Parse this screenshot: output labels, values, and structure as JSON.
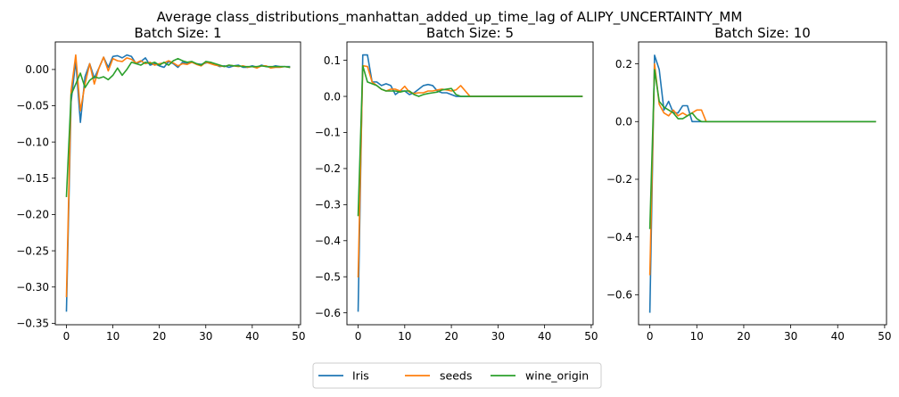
{
  "figure": {
    "title": "Average class_distributions_manhattan_added_up_time_lag of ALIPY_UNCERTAINTY_MM"
  },
  "legend": {
    "placement": "bottom-center",
    "entries": [
      {
        "name": "Iris",
        "color": "#1f77b4"
      },
      {
        "name": "seeds",
        "color": "#ff7f0e"
      },
      {
        "name": "wine_origin",
        "color": "#2ca02c"
      }
    ]
  },
  "chart_data": [
    {
      "type": "line",
      "title": "Batch Size: 1",
      "xlabel": "",
      "ylabel": "",
      "xlim": [
        -2.4,
        50.4
      ],
      "ylim": [
        -0.352,
        0.038
      ],
      "xticks": [
        0,
        10,
        20,
        30,
        40,
        50
      ],
      "yticks": [
        -0.35,
        -0.3,
        -0.25,
        -0.2,
        -0.15,
        -0.1,
        -0.05,
        0.0
      ],
      "ytick_labels": [
        "−0.35",
        "−0.30",
        "−0.25",
        "−0.20",
        "−0.15",
        "−0.10",
        "−0.05",
        "0.00"
      ],
      "grid": false,
      "series": [
        {
          "name": "Iris",
          "color": "#1f77b4",
          "x": [
            0,
            1,
            2,
            3,
            4,
            5,
            6,
            7,
            8,
            9,
            10,
            11,
            12,
            13,
            14,
            15,
            16,
            17,
            18,
            19,
            20,
            21,
            22,
            23,
            24,
            25,
            26,
            27,
            28,
            29,
            30,
            31,
            32,
            33,
            34,
            35,
            36,
            37,
            38,
            39,
            40,
            41,
            42,
            43,
            44,
            45,
            46,
            47,
            48
          ],
          "y": [
            -0.333,
            -0.045,
            0.012,
            -0.073,
            -0.01,
            0.008,
            -0.012,
            0.002,
            0.017,
            0.003,
            0.018,
            0.019,
            0.016,
            0.02,
            0.018,
            0.008,
            0.011,
            0.016,
            0.006,
            0.008,
            0.005,
            0.003,
            0.011,
            0.008,
            0.003,
            0.01,
            0.008,
            0.01,
            0.008,
            0.007,
            0.009,
            0.01,
            0.007,
            0.004,
            0.005,
            0.003,
            0.005,
            0.006,
            0.003,
            0.003,
            0.005,
            0.003,
            0.006,
            0.004,
            0.003,
            0.005,
            0.004,
            0.004,
            0.004
          ]
        },
        {
          "name": "seeds",
          "color": "#ff7f0e",
          "x": [
            0,
            1,
            2,
            3,
            4,
            5,
            6,
            7,
            8,
            9,
            10,
            11,
            12,
            13,
            14,
            15,
            16,
            17,
            18,
            19,
            20,
            21,
            22,
            23,
            24,
            25,
            26,
            27,
            28,
            29,
            30,
            31,
            32,
            33,
            34,
            35,
            36,
            37,
            38,
            39,
            40,
            41,
            42,
            43,
            44,
            45,
            46,
            47,
            48
          ],
          "y": [
            -0.313,
            -0.03,
            0.02,
            -0.057,
            -0.02,
            0.008,
            -0.02,
            0.002,
            0.017,
            -0.002,
            0.015,
            0.012,
            0.011,
            0.016,
            0.014,
            0.009,
            0.012,
            0.008,
            0.01,
            0.006,
            0.008,
            0.009,
            0.012,
            0.009,
            0.005,
            0.008,
            0.007,
            0.01,
            0.007,
            0.005,
            0.01,
            0.008,
            0.006,
            0.005,
            0.004,
            0.006,
            0.005,
            0.004,
            0.005,
            0.003,
            0.004,
            0.002,
            0.005,
            0.005,
            0.002,
            0.003,
            0.003,
            0.004,
            0.003
          ]
        },
        {
          "name": "wine_origin",
          "color": "#2ca02c",
          "x": [
            0,
            1,
            2,
            3,
            4,
            5,
            6,
            7,
            8,
            9,
            10,
            11,
            12,
            13,
            14,
            15,
            16,
            17,
            18,
            19,
            20,
            21,
            22,
            23,
            24,
            25,
            26,
            27,
            28,
            29,
            30,
            31,
            32,
            33,
            34,
            35,
            36,
            37,
            38,
            39,
            40,
            41,
            42,
            43,
            44,
            45,
            46,
            47,
            48
          ],
          "y": [
            -0.175,
            -0.035,
            -0.02,
            -0.005,
            -0.025,
            -0.015,
            -0.01,
            -0.012,
            -0.01,
            -0.014,
            -0.008,
            0.002,
            -0.008,
            0.0,
            0.01,
            0.008,
            0.006,
            0.01,
            0.008,
            0.01,
            0.006,
            0.01,
            0.006,
            0.012,
            0.015,
            0.012,
            0.01,
            0.011,
            0.008,
            0.006,
            0.011,
            0.01,
            0.008,
            0.006,
            0.004,
            0.006,
            0.005,
            0.005,
            0.004,
            0.004,
            0.004,
            0.004,
            0.005,
            0.004,
            0.004,
            0.004,
            0.004,
            0.004,
            0.003
          ]
        }
      ]
    },
    {
      "type": "line",
      "title": "Batch Size: 5",
      "xlabel": "",
      "ylabel": "",
      "xlim": [
        -2.4,
        50.4
      ],
      "ylim": [
        -0.633,
        0.151
      ],
      "xticks": [
        0,
        10,
        20,
        30,
        40,
        50
      ],
      "yticks": [
        -0.6,
        -0.5,
        -0.4,
        -0.3,
        -0.2,
        -0.1,
        0.0,
        0.1
      ],
      "ytick_labels": [
        "−0.6",
        "−0.5",
        "−0.4",
        "−0.3",
        "−0.2",
        "−0.1",
        "0.0",
        "0.1"
      ],
      "grid": false,
      "series": [
        {
          "name": "Iris",
          "color": "#1f77b4",
          "x": [
            0,
            1,
            2,
            3,
            4,
            5,
            6,
            7,
            8,
            9,
            10,
            11,
            12,
            13,
            14,
            15,
            16,
            17,
            18,
            19,
            20,
            21,
            22,
            23,
            24,
            25,
            26,
            27,
            28,
            29,
            30,
            31,
            32,
            33,
            34,
            35,
            36,
            37,
            38,
            39,
            40,
            41,
            42,
            43,
            44,
            45,
            46,
            47,
            48
          ],
          "y": [
            -0.595,
            0.115,
            0.115,
            0.04,
            0.04,
            0.03,
            0.035,
            0.03,
            0.005,
            0.015,
            0.015,
            0.005,
            0.01,
            0.02,
            0.03,
            0.033,
            0.03,
            0.015,
            0.01,
            0.01,
            0.005,
            0,
            0,
            0,
            0,
            0,
            0,
            0,
            0,
            0,
            0,
            0,
            0,
            0,
            0,
            0,
            0,
            0,
            0,
            0,
            0,
            0,
            0,
            0,
            0,
            0,
            0,
            0,
            0
          ]
        },
        {
          "name": "seeds",
          "color": "#ff7f0e",
          "x": [
            0,
            1,
            2,
            3,
            4,
            5,
            6,
            7,
            8,
            9,
            10,
            11,
            12,
            13,
            14,
            15,
            16,
            17,
            18,
            19,
            20,
            21,
            22,
            23,
            24,
            25,
            26,
            27,
            28,
            29,
            30,
            31,
            32,
            33,
            34,
            35,
            36,
            37,
            38,
            39,
            40,
            41,
            42,
            43,
            44,
            45,
            46,
            47,
            48
          ],
          "y": [
            -0.5,
            0.085,
            0.083,
            0.04,
            0.03,
            0.02,
            0.015,
            0.02,
            0.02,
            0.015,
            0.028,
            0.012,
            0.008,
            0.01,
            0.01,
            0.015,
            0.015,
            0.018,
            0.02,
            0.018,
            0.015,
            0.018,
            0.03,
            0.015,
            0,
            0,
            0,
            0,
            0,
            0,
            0,
            0,
            0,
            0,
            0,
            0,
            0,
            0,
            0,
            0,
            0,
            0,
            0,
            0,
            0,
            0,
            0,
            0,
            0
          ]
        },
        {
          "name": "wine_origin",
          "color": "#2ca02c",
          "x": [
            0,
            1,
            2,
            3,
            4,
            5,
            6,
            7,
            8,
            9,
            10,
            11,
            12,
            13,
            14,
            15,
            16,
            17,
            18,
            19,
            20,
            21,
            22,
            23,
            24,
            25,
            26,
            27,
            28,
            29,
            30,
            31,
            32,
            33,
            34,
            35,
            36,
            37,
            38,
            39,
            40,
            41,
            42,
            43,
            44,
            45,
            46,
            47,
            48
          ],
          "y": [
            -0.33,
            0.085,
            0.04,
            0.035,
            0.03,
            0.02,
            0.015,
            0.015,
            0.015,
            0.012,
            0.015,
            0.015,
            0.005,
            0.0,
            0.005,
            0.008,
            0.01,
            0.012,
            0.018,
            0.02,
            0.022,
            0.005,
            0,
            0,
            0,
            0,
            0,
            0,
            0,
            0,
            0,
            0,
            0,
            0,
            0,
            0,
            0,
            0,
            0,
            0,
            0,
            0,
            0,
            0,
            0,
            0,
            0,
            0,
            0
          ]
        }
      ]
    },
    {
      "type": "line",
      "title": "Batch Size: 10",
      "xlabel": "",
      "ylabel": "",
      "xlim": [
        -2.4,
        50.4
      ],
      "ylim": [
        -0.704,
        0.276
      ],
      "xticks": [
        0,
        10,
        20,
        30,
        40,
        50
      ],
      "yticks": [
        -0.6,
        -0.4,
        -0.2,
        0.0,
        0.2
      ],
      "ytick_labels": [
        "−0.6",
        "−0.4",
        "−0.2",
        "0.0",
        "0.2"
      ],
      "grid": false,
      "series": [
        {
          "name": "Iris",
          "color": "#1f77b4",
          "x": [
            0,
            1,
            2,
            3,
            4,
            5,
            6,
            7,
            8,
            9,
            10,
            11,
            12,
            13,
            14,
            15,
            16,
            17,
            18,
            19,
            20,
            21,
            22,
            23,
            24,
            25,
            26,
            27,
            28,
            29,
            30,
            31,
            32,
            33,
            34,
            35,
            36,
            37,
            38,
            39,
            40,
            41,
            42,
            43,
            44,
            45,
            46,
            47,
            48
          ],
          "y": [
            -0.66,
            0.23,
            0.18,
            0.04,
            0.07,
            0.03,
            0.03,
            0.055,
            0.055,
            0.0,
            0.0,
            0.0,
            0,
            0,
            0,
            0,
            0,
            0,
            0,
            0,
            0,
            0,
            0,
            0,
            0,
            0,
            0,
            0,
            0,
            0,
            0,
            0,
            0,
            0,
            0,
            0,
            0,
            0,
            0,
            0,
            0,
            0,
            0,
            0,
            0,
            0,
            0,
            0,
            0
          ]
        },
        {
          "name": "seeds",
          "color": "#ff7f0e",
          "x": [
            0,
            1,
            2,
            3,
            4,
            5,
            6,
            7,
            8,
            9,
            10,
            11,
            12,
            13,
            14,
            15,
            16,
            17,
            18,
            19,
            20,
            21,
            22,
            23,
            24,
            25,
            26,
            27,
            28,
            29,
            30,
            31,
            32,
            33,
            34,
            35,
            36,
            37,
            38,
            39,
            40,
            41,
            42,
            43,
            44,
            45,
            46,
            47,
            48
          ],
          "y": [
            -0.53,
            0.2,
            0.06,
            0.03,
            0.02,
            0.04,
            0.02,
            0.03,
            0.02,
            0.03,
            0.04,
            0.04,
            0,
            0,
            0,
            0,
            0,
            0,
            0,
            0,
            0,
            0,
            0,
            0,
            0,
            0,
            0,
            0,
            0,
            0,
            0,
            0,
            0,
            0,
            0,
            0,
            0,
            0,
            0,
            0,
            0,
            0,
            0,
            0,
            0,
            0,
            0,
            0,
            0
          ]
        },
        {
          "name": "wine_origin",
          "color": "#2ca02c",
          "x": [
            0,
            1,
            2,
            3,
            4,
            5,
            6,
            7,
            8,
            9,
            10,
            11,
            12,
            13,
            14,
            15,
            16,
            17,
            18,
            19,
            20,
            21,
            22,
            23,
            24,
            25,
            26,
            27,
            28,
            29,
            30,
            31,
            32,
            33,
            34,
            35,
            36,
            37,
            38,
            39,
            40,
            41,
            42,
            43,
            44,
            45,
            46,
            47,
            48
          ],
          "y": [
            -0.37,
            0.18,
            0.07,
            0.05,
            0.04,
            0.03,
            0.01,
            0.01,
            0.02,
            0.03,
            0.01,
            0.0,
            0,
            0,
            0,
            0,
            0,
            0,
            0,
            0,
            0,
            0,
            0,
            0,
            0,
            0,
            0,
            0,
            0,
            0,
            0,
            0,
            0,
            0,
            0,
            0,
            0,
            0,
            0,
            0,
            0,
            0,
            0,
            0,
            0,
            0,
            0,
            0,
            0
          ]
        }
      ]
    }
  ]
}
